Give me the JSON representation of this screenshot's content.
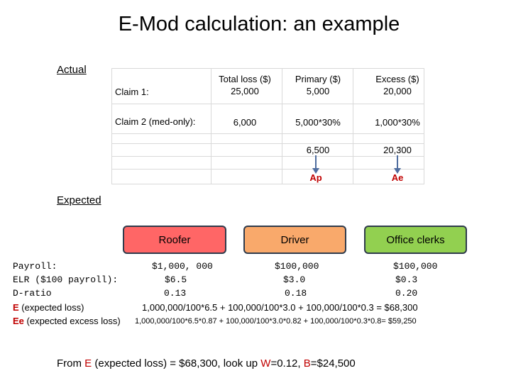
{
  "title": "E-Mod calculation:  an example",
  "actual": {
    "label": "Actual",
    "headers": {
      "total": [
        "Total loss ($)",
        "25,000"
      ],
      "primary": [
        "Primary ($)",
        "5,000"
      ],
      "excess": [
        "Excess ($)",
        "20,000"
      ]
    },
    "claim1_label": "Claim 1:",
    "claim2_label": "Claim 2 (med-only):",
    "claim2": {
      "total": "6,000",
      "primary": "5,000*30%",
      "excess": "1,000*30%"
    },
    "totals": {
      "primary": "6,500",
      "excess": "20,300"
    },
    "arrows": {
      "primary": "Ap",
      "excess": "Ae"
    }
  },
  "expected": {
    "label": "Expected",
    "classes": [
      {
        "name": "Roofer",
        "color": "#ff6666"
      },
      {
        "name": "Driver",
        "color": "#f9a96b"
      },
      {
        "name": "Office clerks",
        "color": "#92d050"
      }
    ]
  },
  "rows": {
    "payroll": {
      "label": "Payroll:",
      "roofer": "$1,000, 000",
      "driver": "$100,000",
      "office": "$100,000"
    },
    "elr": {
      "label": "ELR ($100 payroll):",
      "roofer": "$6.5",
      "driver": "$3.0",
      "office": "$0.3"
    },
    "dratio": {
      "label": "D-ratio",
      "roofer": "0.13",
      "driver": "0.18",
      "office": "0.20"
    },
    "e": {
      "letter": "E",
      "label_rest": " (expected loss)",
      "formula": "1,000,000/100*6.5   +  100,000/100*3.0  +  100,000/100*0.3 = $68,300"
    },
    "ee": {
      "letter": "Ee",
      "label_rest": " (expected excess loss)",
      "formula": "1,000,000/100*6.5*0.87 + 100,000/100*3.0*0.82 + 100,000/100*0.3*0.8= $59,250"
    }
  },
  "bottom": {
    "prefix": "From ",
    "e_letter": "E",
    "middle": " (expected loss) = $68,300, look up ",
    "w_letter": "W",
    "w_value": "=0.12,  ",
    "b_letter": "B",
    "b_value": "=$24,500"
  },
  "colors": {
    "accent_red": "#c00000",
    "arrow_blue": "#4f6d9f"
  }
}
